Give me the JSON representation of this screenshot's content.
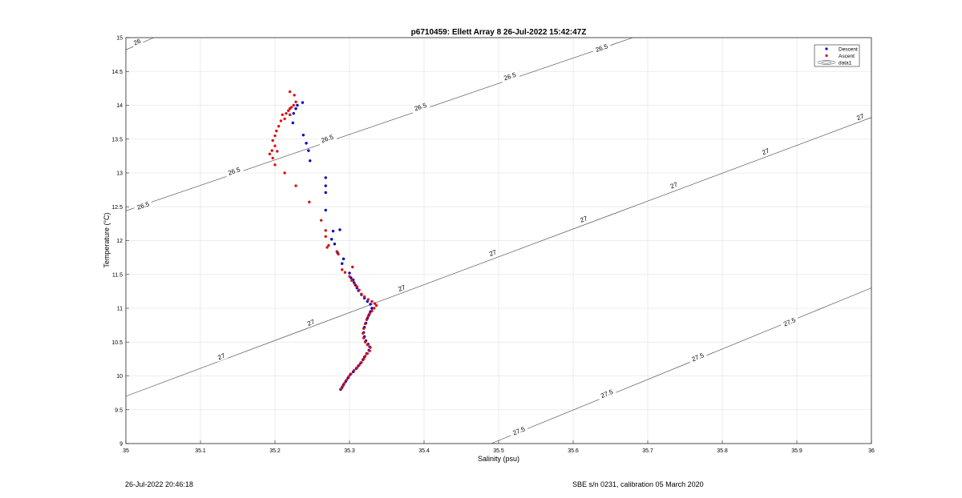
{
  "chart_data": {
    "type": "scatter",
    "title": "p6710459: Ellett Array 8 26-Jul-2022 15:42:47Z",
    "xlabel": "Salinity (psu)",
    "ylabel": "Temperature (°C)",
    "xlim": [
      35,
      36
    ],
    "ylim": [
      9,
      15
    ],
    "xticks": [
      35,
      35.1,
      35.2,
      35.3,
      35.4,
      35.5,
      35.6,
      35.7,
      35.8,
      35.9,
      36
    ],
    "xtick_labels": [
      "35",
      "35.1",
      "35.2",
      "35.3",
      "35.4",
      "35.5",
      "35.6",
      "35.7",
      "35.8",
      "35.9",
      "36"
    ],
    "yticks": [
      9,
      9.5,
      10,
      10.5,
      11,
      11.5,
      12,
      12.5,
      13,
      13.5,
      14,
      14.5,
      15
    ],
    "ytick_labels": [
      "9",
      "9.5",
      "10",
      "10.5",
      "11",
      "11.5",
      "12",
      "12.5",
      "13",
      "13.5",
      "14",
      "14.5",
      "15"
    ],
    "grid": true,
    "legend_position": "top-right",
    "legend": [
      "Descent",
      "Ascent",
      "data1"
    ],
    "series": [
      {
        "name": "Descent",
        "color": "#0000cc",
        "points": [
          [
            35.237,
            14.04
          ],
          [
            35.23,
            14.0
          ],
          [
            35.228,
            13.95
          ],
          [
            35.225,
            13.88
          ],
          [
            35.224,
            13.74
          ],
          [
            35.238,
            13.56
          ],
          [
            35.242,
            13.44
          ],
          [
            35.245,
            13.33
          ],
          [
            35.247,
            13.18
          ],
          [
            35.268,
            12.93
          ],
          [
            35.268,
            12.81
          ],
          [
            35.268,
            12.71
          ],
          [
            35.268,
            12.45
          ],
          [
            35.278,
            12.14
          ],
          [
            35.287,
            12.16
          ],
          [
            35.276,
            12.02
          ],
          [
            35.28,
            11.95
          ],
          [
            35.284,
            11.82
          ],
          [
            35.292,
            11.73
          ],
          [
            35.29,
            11.66
          ],
          [
            35.3,
            11.52
          ],
          [
            35.302,
            11.45
          ],
          [
            35.305,
            11.42
          ],
          [
            35.306,
            11.38
          ],
          [
            35.308,
            11.34
          ],
          [
            35.31,
            11.3
          ],
          [
            35.312,
            11.26
          ],
          [
            35.316,
            11.2
          ],
          [
            35.32,
            11.15
          ],
          [
            35.324,
            11.1
          ],
          [
            35.328,
            11.06
          ],
          [
            35.33,
            11.0
          ],
          [
            35.328,
            10.95
          ],
          [
            35.326,
            10.9
          ],
          [
            35.324,
            10.85
          ],
          [
            35.322,
            10.78
          ],
          [
            35.32,
            10.72
          ],
          [
            35.319,
            10.64
          ],
          [
            35.32,
            10.58
          ],
          [
            35.322,
            10.52
          ],
          [
            35.325,
            10.47
          ],
          [
            35.327,
            10.43
          ],
          [
            35.326,
            10.38
          ],
          [
            35.323,
            10.33
          ],
          [
            35.32,
            10.28
          ],
          [
            35.318,
            10.24
          ],
          [
            35.315,
            10.19
          ],
          [
            35.312,
            10.15
          ],
          [
            35.309,
            10.11
          ],
          [
            35.305,
            10.06
          ],
          [
            35.301,
            10.02
          ],
          [
            35.298,
            9.97
          ],
          [
            35.295,
            9.92
          ],
          [
            35.292,
            9.87
          ],
          [
            35.29,
            9.83
          ],
          [
            35.288,
            9.8
          ]
        ]
      },
      {
        "name": "Ascent",
        "color": "#dd1111",
        "points": [
          [
            35.22,
            14.2
          ],
          [
            35.226,
            14.15
          ],
          [
            35.228,
            14.05
          ],
          [
            35.225,
            14.0
          ],
          [
            35.222,
            13.97
          ],
          [
            35.22,
            13.95
          ],
          [
            35.218,
            13.92
          ],
          [
            35.215,
            13.88
          ],
          [
            35.21,
            13.86
          ],
          [
            35.22,
            13.86
          ],
          [
            35.213,
            13.8
          ],
          [
            35.208,
            13.77
          ],
          [
            35.205,
            13.69
          ],
          [
            35.202,
            13.62
          ],
          [
            35.2,
            13.55
          ],
          [
            35.197,
            13.48
          ],
          [
            35.2,
            13.4
          ],
          [
            35.196,
            13.33
          ],
          [
            35.193,
            13.28
          ],
          [
            35.203,
            13.32
          ],
          [
            35.197,
            13.22
          ],
          [
            35.2,
            13.12
          ],
          [
            35.213,
            13.0
          ],
          [
            35.228,
            12.81
          ],
          [
            35.246,
            12.57
          ],
          [
            35.262,
            12.3
          ],
          [
            35.268,
            12.15
          ],
          [
            35.268,
            12.06
          ],
          [
            35.272,
            11.93
          ],
          [
            35.27,
            11.9
          ],
          [
            35.283,
            11.84
          ],
          [
            35.285,
            11.8
          ],
          [
            35.29,
            11.57
          ],
          [
            35.294,
            11.53
          ],
          [
            35.304,
            11.61
          ],
          [
            35.3,
            11.47
          ],
          [
            35.303,
            11.41
          ],
          [
            35.307,
            11.36
          ],
          [
            35.31,
            11.32
          ],
          [
            35.313,
            11.27
          ],
          [
            35.316,
            11.21
          ],
          [
            35.32,
            11.17
          ],
          [
            35.325,
            11.13
          ],
          [
            35.33,
            11.1
          ],
          [
            35.334,
            11.07
          ],
          [
            35.336,
            11.04
          ],
          [
            35.333,
            11.0
          ],
          [
            35.33,
            10.96
          ],
          [
            35.327,
            10.92
          ],
          [
            35.325,
            10.88
          ],
          [
            35.323,
            10.83
          ],
          [
            35.321,
            10.77
          ],
          [
            35.319,
            10.7
          ],
          [
            35.318,
            10.63
          ],
          [
            35.319,
            10.56
          ],
          [
            35.321,
            10.5
          ],
          [
            35.324,
            10.46
          ],
          [
            35.328,
            10.42
          ],
          [
            35.327,
            10.37
          ],
          [
            35.324,
            10.33
          ],
          [
            35.321,
            10.29
          ],
          [
            35.319,
            10.25
          ],
          [
            35.316,
            10.2
          ],
          [
            35.313,
            10.16
          ],
          [
            35.31,
            10.12
          ],
          [
            35.306,
            10.08
          ],
          [
            35.302,
            10.03
          ],
          [
            35.299,
            9.99
          ],
          [
            35.296,
            9.94
          ],
          [
            35.293,
            9.89
          ],
          [
            35.291,
            9.85
          ],
          [
            35.289,
            9.81
          ]
        ]
      }
    ],
    "isopycnals": [
      {
        "value": 26,
        "label": "26",
        "points": [
          [
            35,
            14.82
          ],
          [
            35.0375,
            15
          ]
        ]
      },
      {
        "value": 26.5,
        "label": "26.5",
        "points": [
          [
            35,
            12.44
          ],
          [
            35.68,
            15
          ]
        ]
      },
      {
        "value": 27,
        "label": "27",
        "points": [
          [
            35,
            9.7
          ],
          [
            36,
            13.82
          ]
        ]
      },
      {
        "value": 27.5,
        "label": "27.5",
        "points": [
          [
            35.49,
            9
          ],
          [
            36,
            11.3
          ]
        ]
      }
    ],
    "isopycnal_labels": [
      {
        "text": "26",
        "x": 35.015,
        "y": 14.94
      },
      {
        "text": "26.5",
        "x": 35.023,
        "y": 12.52
      },
      {
        "text": "26.5",
        "x": 35.145,
        "y": 13.03
      },
      {
        "text": "26.5",
        "x": 35.27,
        "y": 13.51
      },
      {
        "text": "26.5",
        "x": 35.395,
        "y": 13.98
      },
      {
        "text": "26.5",
        "x": 35.515,
        "y": 14.43
      },
      {
        "text": "26.5",
        "x": 35.638,
        "y": 14.85
      },
      {
        "text": "27",
        "x": 35.128,
        "y": 10.29
      },
      {
        "text": "27",
        "x": 35.248,
        "y": 10.79
      },
      {
        "text": "27",
        "x": 35.37,
        "y": 11.3
      },
      {
        "text": "27",
        "x": 35.492,
        "y": 11.82
      },
      {
        "text": "27",
        "x": 35.614,
        "y": 12.32
      },
      {
        "text": "27",
        "x": 35.735,
        "y": 12.82
      },
      {
        "text": "27",
        "x": 35.858,
        "y": 13.32
      },
      {
        "text": "27",
        "x": 35.985,
        "y": 13.83
      },
      {
        "text": "27.5",
        "x": 35.527,
        "y": 9.19
      },
      {
        "text": "27.5",
        "x": 35.645,
        "y": 9.74
      },
      {
        "text": "27.5",
        "x": 35.767,
        "y": 10.28
      },
      {
        "text": "27.5",
        "x": 35.89,
        "y": 10.8
      }
    ]
  },
  "footer": {
    "left": "26-Jul-2022 20:46:18",
    "right": "SBE s/n 0231, calibration 05 March 2020"
  }
}
